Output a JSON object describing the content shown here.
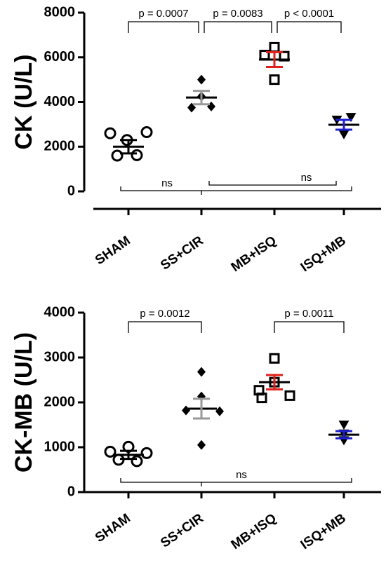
{
  "chart_data": [
    {
      "type": "scatter",
      "ylabel": "CK (U/L)",
      "ylim": [
        0,
        8000
      ],
      "yticks": [
        0,
        2000,
        4000,
        6000,
        8000
      ],
      "categories": [
        "SHAM",
        "SS+CIR",
        "MB+ISQ",
        "ISQ+MB"
      ],
      "series": [
        {
          "category": "SHAM",
          "marker": "circle",
          "color": "#000000",
          "error_color": "#000000",
          "mean": 2000,
          "sem": 300,
          "points": [
            2300,
            2600,
            2650,
            1600,
            1620
          ]
        },
        {
          "category": "SS+CIR",
          "marker": "diamond",
          "color": "#000000",
          "error_color": "#999999",
          "mean": 4200,
          "sem": 300,
          "points": [
            5000,
            3750,
            3800,
            4250
          ]
        },
        {
          "category": "MB+ISQ",
          "marker": "square",
          "color": "#000000",
          "error_color": "#e0201b",
          "mean": 5900,
          "sem": 330,
          "points": [
            6450,
            6100,
            5000,
            6050
          ]
        },
        {
          "category": "ISQ+MB",
          "marker": "triangle-down",
          "color": "#000000",
          "error_color": "#1f1fd1",
          "mean": 2980,
          "sem": 220,
          "points": [
            3200,
            3320,
            2550
          ]
        }
      ],
      "comparisons": [
        {
          "from": "SHAM",
          "to": "SS+CIR",
          "label": "p = 0.0007",
          "y": 7500,
          "position": "above"
        },
        {
          "from": "SS+CIR",
          "to": "MB+ISQ",
          "label": "p = 0.0083",
          "y": 7500,
          "position": "above"
        },
        {
          "from": "MB+ISQ",
          "to": "ISQ+MB",
          "label": "p < 0.0001",
          "y": 7500,
          "position": "above"
        },
        {
          "from": "SHAM",
          "to": "ISQ+MB",
          "label": "ns",
          "y": 0,
          "position": "below"
        },
        {
          "from": "SS+CIR",
          "to": "ISQ+MB",
          "label": "ns",
          "y": 300,
          "position": "below"
        }
      ]
    },
    {
      "type": "scatter",
      "ylabel": "CK-MB (U/L)",
      "ylim": [
        0,
        4000
      ],
      "yticks": [
        0,
        1000,
        2000,
        3000,
        4000
      ],
      "categories": [
        "SHAM",
        "SS+CIR",
        "MB+ISQ",
        "ISQ+MB"
      ],
      "series": [
        {
          "category": "SHAM",
          "marker": "circle",
          "color": "#000000",
          "error_color": "#000000",
          "mean": 830,
          "sem": 90,
          "points": [
            900,
            1010,
            870,
            720,
            690
          ]
        },
        {
          "category": "SS+CIR",
          "marker": "diamond",
          "color": "#000000",
          "error_color": "#999999",
          "mean": 1860,
          "sem": 220,
          "points": [
            2680,
            2130,
            1820,
            1800,
            1050
          ]
        },
        {
          "category": "MB+ISQ",
          "marker": "square",
          "color": "#000000",
          "error_color": "#e0201b",
          "mean": 2450,
          "sem": 160,
          "points": [
            2980,
            2450,
            2270,
            2150,
            2100
          ]
        },
        {
          "category": "ISQ+MB",
          "marker": "triangle-down",
          "color": "#000000",
          "error_color": "#1f1fd1",
          "mean": 1280,
          "sem": 80,
          "points": [
            1500,
            1300,
            1150
          ]
        }
      ],
      "comparisons": [
        {
          "from": "SHAM",
          "to": "SS+CIR",
          "label": "p = 0.0012",
          "y": 3700,
          "position": "above"
        },
        {
          "from": "MB+ISQ",
          "to": "ISQ+MB",
          "label": "p = 0.0011",
          "y": 3700,
          "position": "above"
        },
        {
          "from": "SHAM",
          "to": "ISQ+MB",
          "label": "ns",
          "y": 210,
          "position": "below"
        }
      ]
    }
  ]
}
